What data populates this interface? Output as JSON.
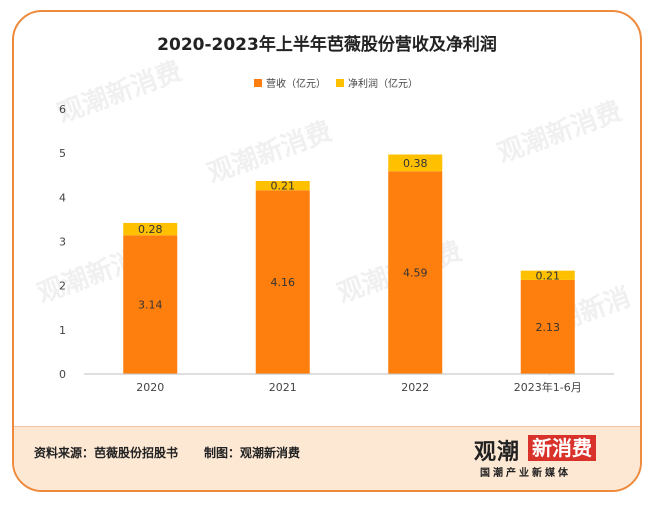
{
  "chart_data": {
    "type": "bar",
    "stacked": true,
    "title": "2020-2023年上半年芭薇股份营收及净利润",
    "categories": [
      "2020",
      "2021",
      "2022",
      "2023年1-6月"
    ],
    "series": [
      {
        "name": "营收（亿元）",
        "color": "#ff7f0e",
        "values": [
          3.14,
          4.16,
          4.59,
          2.13
        ]
      },
      {
        "name": "净利润（亿元）",
        "color": "#ffc000",
        "values": [
          0.28,
          0.21,
          0.38,
          0.21
        ]
      }
    ],
    "ylim": [
      0,
      6
    ],
    "yticks": [
      0,
      1,
      2,
      3,
      4,
      5,
      6
    ],
    "legend": "top",
    "grid": false
  },
  "footer": {
    "source": "资料来源：芭薇股份招股书",
    "maker": "制图：观潮新消费"
  },
  "logo": {
    "name_part1": "观潮",
    "name_part2": "新消费",
    "tagline": "国潮产业新媒体"
  },
  "watermark": "观潮新消费"
}
